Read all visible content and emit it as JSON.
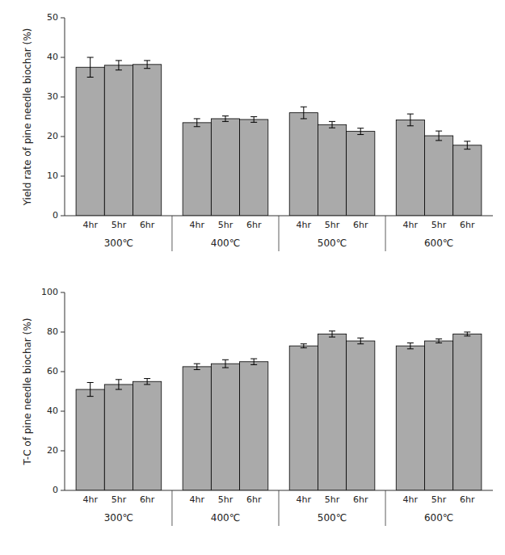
{
  "chart_data": [
    {
      "type": "bar",
      "y_label": "Yield rate of pine needle biochar (%)",
      "categories": [
        "4hr",
        "5hr",
        "6hr",
        "4hr",
        "5hr",
        "6hr",
        "4hr",
        "5hr",
        "6hr",
        "4hr",
        "5hr",
        "6hr"
      ],
      "groups": [
        "300℃",
        "400℃",
        "500℃",
        "600℃"
      ],
      "values": [
        37.5,
        38.0,
        38.2,
        23.5,
        24.5,
        24.3,
        26.0,
        23.0,
        21.3,
        24.2,
        20.2,
        17.8
      ],
      "errors": [
        2.5,
        1.2,
        1.0,
        1.0,
        0.7,
        0.7,
        1.5,
        0.8,
        0.8,
        1.5,
        1.2,
        1.0
      ],
      "color": "#aaaaaa",
      "ylim": [
        0,
        50
      ],
      "yticks": [
        0,
        10,
        20,
        30,
        40,
        50
      ]
    },
    {
      "type": "bar",
      "y_label": "T-C of pine needle biochar (%)",
      "categories": [
        "4hr",
        "5hr",
        "6hr",
        "4hr",
        "5hr",
        "6hr",
        "4hr",
        "5hr",
        "6hr",
        "4hr",
        "5hr",
        "6hr"
      ],
      "groups": [
        "300℃",
        "400℃",
        "500℃",
        "600℃"
      ],
      "values": [
        51.0,
        53.5,
        55.0,
        62.5,
        64.0,
        65.0,
        73.0,
        79.0,
        75.5,
        73.0,
        75.5,
        79.0
      ],
      "errors": [
        3.5,
        2.5,
        1.5,
        1.5,
        2.0,
        1.5,
        1.0,
        1.5,
        1.5,
        1.5,
        1.0,
        1.0
      ],
      "color": "#aaaaaa",
      "ylim": [
        0,
        100
      ],
      "yticks": [
        0,
        20,
        40,
        60,
        80,
        100
      ]
    }
  ]
}
